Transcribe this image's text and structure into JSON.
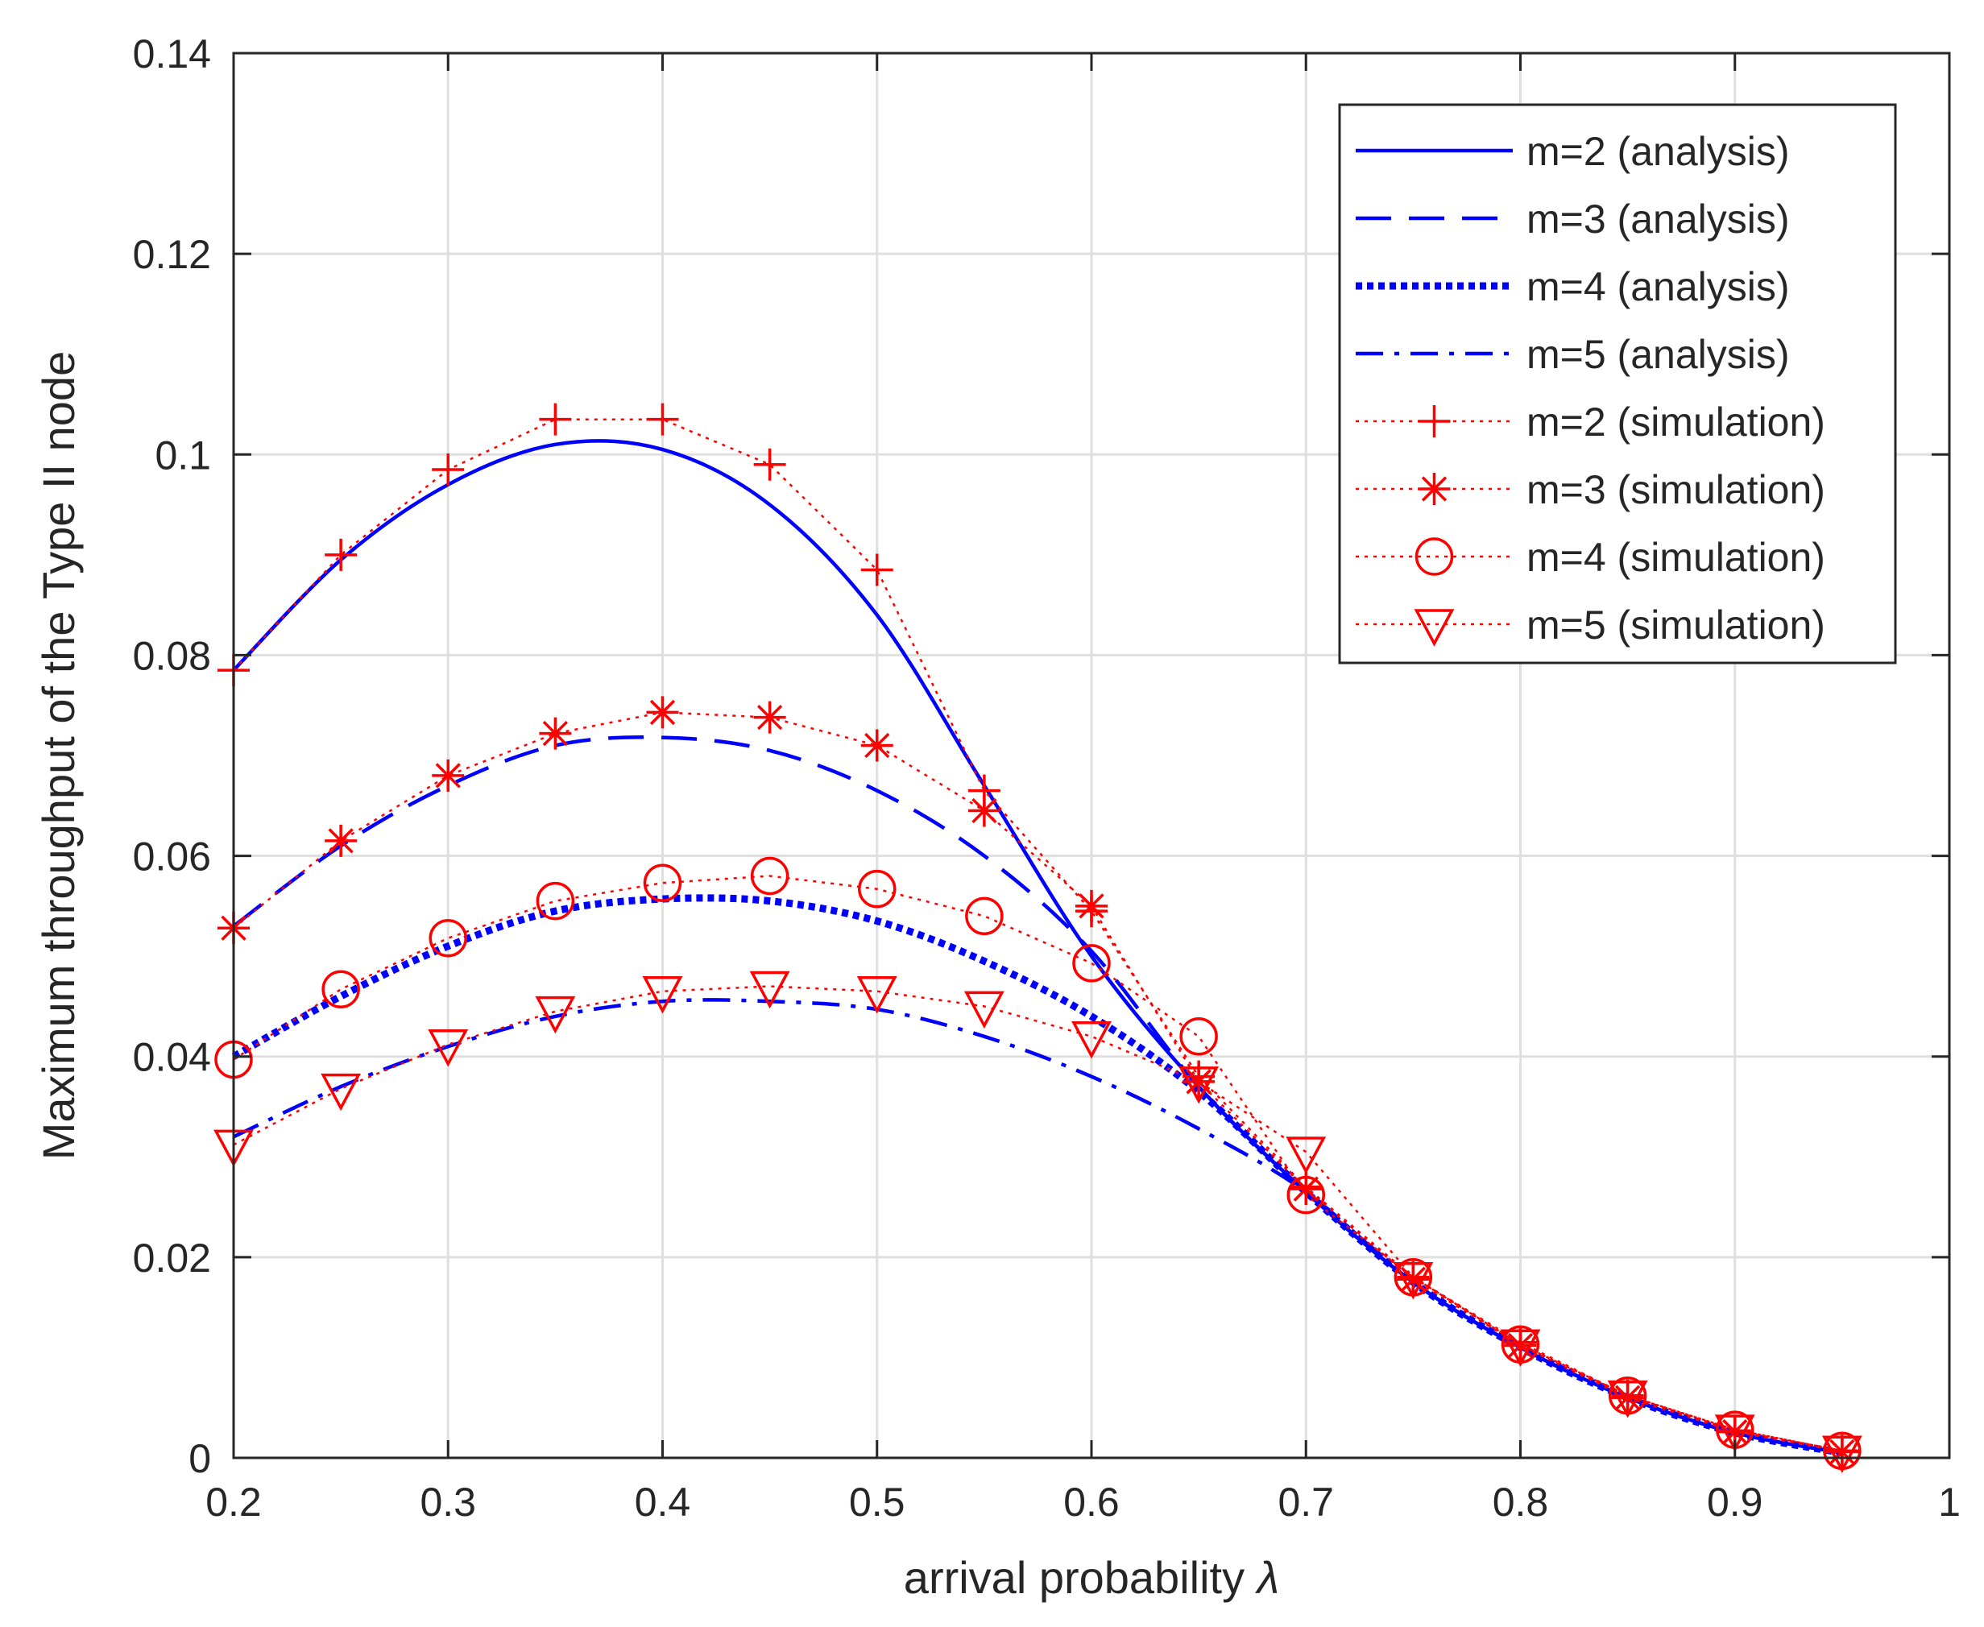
{
  "chart_data": {
    "type": "line",
    "title": "",
    "xlabel": "arrival probability",
    "xlabel_symbol": "λ",
    "ylabel": "Maximum throughput of the Type II node",
    "xlim": [
      0.2,
      1
    ],
    "ylim": [
      0,
      0.14
    ],
    "xticks": [
      "0.2",
      "0.3",
      "0.4",
      "0.5",
      "0.6",
      "0.7",
      "0.8",
      "0.9",
      "1"
    ],
    "yticks": [
      "0",
      "0.02",
      "0.04",
      "0.06",
      "0.08",
      "0.1",
      "0.12",
      "0.14"
    ],
    "grid": true,
    "legend_position": "top-right",
    "colors": {
      "analysis": "#0000ff",
      "simulation": "#ff0000",
      "axis": "#262626",
      "grid": "#dfdfdf"
    },
    "analysis_series": [
      {
        "name": "m=2 (analysis)",
        "style": "solid",
        "x": [
          0.2,
          0.25,
          0.3,
          0.35,
          0.4,
          0.45,
          0.5,
          0.55,
          0.6,
          0.65,
          0.7,
          0.75,
          0.8,
          0.85,
          0.9,
          0.95
        ],
        "y": [
          0.0785,
          0.0895,
          0.097,
          0.101,
          0.1005,
          0.095,
          0.084,
          0.067,
          0.05,
          0.037,
          0.0265,
          0.0175,
          0.011,
          0.006,
          0.0025,
          0.0005
        ]
      },
      {
        "name": "m=3 (analysis)",
        "style": "dashed",
        "x": [
          0.2,
          0.25,
          0.3,
          0.35,
          0.4,
          0.45,
          0.5,
          0.55,
          0.6,
          0.65,
          0.7,
          0.75,
          0.8,
          0.85,
          0.9,
          0.95
        ],
        "y": [
          0.053,
          0.061,
          0.067,
          0.071,
          0.0718,
          0.0705,
          0.0665,
          0.06,
          0.0505,
          0.037,
          0.0265,
          0.0175,
          0.011,
          0.006,
          0.0025,
          0.0005
        ]
      },
      {
        "name": "m=4 (analysis)",
        "style": "dotted",
        "x": [
          0.2,
          0.25,
          0.3,
          0.35,
          0.4,
          0.45,
          0.5,
          0.55,
          0.6,
          0.65,
          0.7,
          0.75,
          0.8,
          0.85,
          0.9,
          0.95
        ],
        "y": [
          0.04,
          0.046,
          0.051,
          0.0545,
          0.0557,
          0.0555,
          0.0535,
          0.0495,
          0.044,
          0.0365,
          0.0265,
          0.0175,
          0.011,
          0.006,
          0.0025,
          0.0005
        ]
      },
      {
        "name": "m=5 (analysis)",
        "style": "dashdot",
        "x": [
          0.2,
          0.25,
          0.3,
          0.35,
          0.4,
          0.45,
          0.5,
          0.55,
          0.6,
          0.65,
          0.7,
          0.75,
          0.8,
          0.85,
          0.9,
          0.95
        ],
        "y": [
          0.032,
          0.037,
          0.041,
          0.044,
          0.0455,
          0.0455,
          0.0447,
          0.042,
          0.038,
          0.0328,
          0.0265,
          0.0175,
          0.011,
          0.006,
          0.0025,
          0.0005
        ]
      }
    ],
    "simulation_series": [
      {
        "name": "m=2 (simulation)",
        "marker": "plus",
        "x": [
          0.2,
          0.25,
          0.3,
          0.35,
          0.4,
          0.45,
          0.5,
          0.55,
          0.6,
          0.65,
          0.7,
          0.75,
          0.8,
          0.85,
          0.9,
          0.95
        ],
        "y": [
          0.0785,
          0.09,
          0.0985,
          0.1035,
          0.1035,
          0.099,
          0.0885,
          0.0665,
          0.0545,
          0.038,
          0.027,
          0.018,
          0.0115,
          0.0062,
          0.0027,
          0.0007
        ]
      },
      {
        "name": "m=3 (simulation)",
        "marker": "asterisk",
        "x": [
          0.2,
          0.25,
          0.3,
          0.35,
          0.4,
          0.45,
          0.5,
          0.55,
          0.6,
          0.65,
          0.7,
          0.75,
          0.8,
          0.85,
          0.9,
          0.95
        ],
        "y": [
          0.0528,
          0.0615,
          0.068,
          0.0722,
          0.0743,
          0.0738,
          0.071,
          0.0645,
          0.055,
          0.0375,
          0.0268,
          0.0178,
          0.0112,
          0.006,
          0.0026,
          0.0006
        ]
      },
      {
        "name": "m=4 (simulation)",
        "marker": "circle",
        "x": [
          0.2,
          0.25,
          0.3,
          0.35,
          0.4,
          0.45,
          0.5,
          0.55,
          0.6,
          0.65,
          0.7,
          0.75,
          0.8,
          0.85,
          0.9,
          0.95
        ],
        "y": [
          0.0397,
          0.0467,
          0.0518,
          0.0555,
          0.0573,
          0.058,
          0.0567,
          0.054,
          0.0493,
          0.042,
          0.0262,
          0.018,
          0.0113,
          0.0062,
          0.0028,
          0.0007
        ]
      },
      {
        "name": "m=5 (simulation)",
        "marker": "triangle-down",
        "x": [
          0.2,
          0.25,
          0.3,
          0.35,
          0.4,
          0.45,
          0.5,
          0.55,
          0.6,
          0.65,
          0.7,
          0.75,
          0.8,
          0.85,
          0.9,
          0.95
        ],
        "y": [
          0.0312,
          0.0368,
          0.0412,
          0.0445,
          0.0465,
          0.047,
          0.0465,
          0.045,
          0.042,
          0.0375,
          0.0305,
          0.018,
          0.0113,
          0.0062,
          0.0028,
          0.0007
        ]
      }
    ]
  }
}
